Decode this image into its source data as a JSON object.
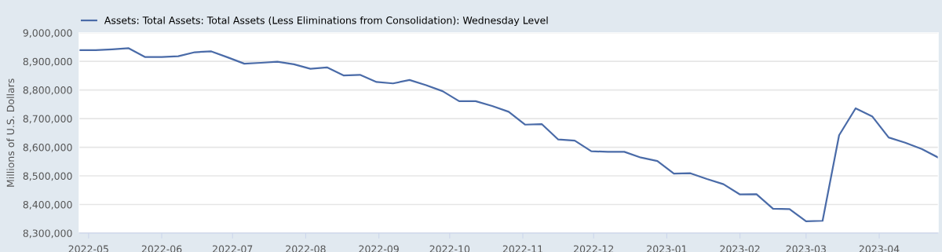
{
  "chart_data": {
    "type": "line",
    "ylabel": "Millions of U.S. Dollars",
    "x": [
      "2022-04-27",
      "2022-05-04",
      "2022-05-11",
      "2022-05-18",
      "2022-05-25",
      "2022-06-01",
      "2022-06-08",
      "2022-06-15",
      "2022-06-22",
      "2022-06-29",
      "2022-07-06",
      "2022-07-13",
      "2022-07-20",
      "2022-07-27",
      "2022-08-03",
      "2022-08-10",
      "2022-08-17",
      "2022-08-24",
      "2022-08-31",
      "2022-09-07",
      "2022-09-14",
      "2022-09-21",
      "2022-09-28",
      "2022-10-05",
      "2022-10-12",
      "2022-10-19",
      "2022-10-26",
      "2022-11-02",
      "2022-11-09",
      "2022-11-16",
      "2022-11-23",
      "2022-11-30",
      "2022-12-07",
      "2022-12-14",
      "2022-12-21",
      "2022-12-28",
      "2023-01-04",
      "2023-01-11",
      "2023-01-18",
      "2023-01-25",
      "2023-02-01",
      "2023-02-08",
      "2023-02-15",
      "2023-02-22",
      "2023-03-01",
      "2023-03-08",
      "2023-03-15",
      "2023-03-22",
      "2023-03-29",
      "2023-04-05",
      "2023-04-12",
      "2023-04-19",
      "2023-04-26"
    ],
    "series": [
      {
        "name": "Assets: Total Assets: Total Assets (Less Eliminations from Consolidation): Wednesday Level",
        "color": "#4a6ba8",
        "values": [
          8939000,
          8939000,
          8942000,
          8946000,
          8915000,
          8915000,
          8918000,
          8932000,
          8935000,
          8914000,
          8892000,
          8895000,
          8899000,
          8890000,
          8874000,
          8879000,
          8851000,
          8853000,
          8828000,
          8823000,
          8835000,
          8817000,
          8796000,
          8761000,
          8761000,
          8744000,
          8724000,
          8679000,
          8681000,
          8627000,
          8623000,
          8586000,
          8584000,
          8584000,
          8564000,
          8552000,
          8508000,
          8509000,
          8489000,
          8471000,
          8435000,
          8436000,
          8385000,
          8384000,
          8341000,
          8343000,
          8642000,
          8736000,
          8708000,
          8634000,
          8616000,
          8594000,
          8564000
        ]
      }
    ],
    "xlim": [
      "2022-04-27",
      "2023-04-26"
    ],
    "xticks": [
      {
        "value": "2022-05-01",
        "label": "2022-05"
      },
      {
        "value": "2022-06-01",
        "label": "2022-06"
      },
      {
        "value": "2022-07-01",
        "label": "2022-07"
      },
      {
        "value": "2022-08-01",
        "label": "2022-08"
      },
      {
        "value": "2022-09-01",
        "label": "2022-09"
      },
      {
        "value": "2022-10-01",
        "label": "2022-10"
      },
      {
        "value": "2022-11-01",
        "label": "2022-11"
      },
      {
        "value": "2022-12-01",
        "label": "2022-12"
      },
      {
        "value": "2023-01-01",
        "label": "2023-01"
      },
      {
        "value": "2023-02-01",
        "label": "2023-02"
      },
      {
        "value": "2023-03-01",
        "label": "2023-03"
      },
      {
        "value": "2023-04-01",
        "label": "2023-04"
      }
    ],
    "ylim": [
      8300000,
      9000000
    ],
    "yticks": [
      {
        "value": 8300000,
        "label": "8,300,000"
      },
      {
        "value": 8400000,
        "label": "8,400,000"
      },
      {
        "value": 8500000,
        "label": "8,500,000"
      },
      {
        "value": 8600000,
        "label": "8,600,000"
      },
      {
        "value": 8700000,
        "label": "8,700,000"
      },
      {
        "value": 8800000,
        "label": "8,800,000"
      },
      {
        "value": 8900000,
        "label": "8,900,000"
      },
      {
        "value": 9000000,
        "label": "9,000,000"
      }
    ],
    "grid": "y",
    "legend": "top left",
    "marker": "none",
    "line_style": "solid"
  }
}
